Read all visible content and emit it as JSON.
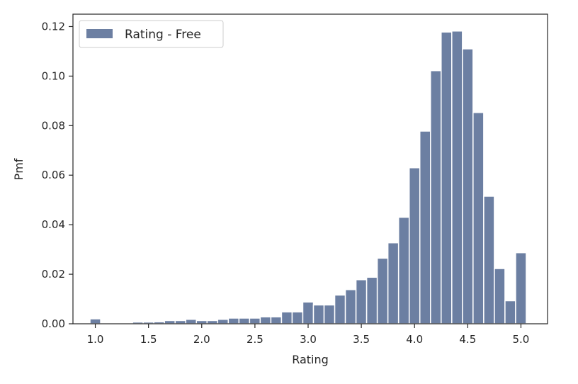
{
  "chart_data": {
    "type": "bar",
    "title": "",
    "xlabel": "Rating",
    "ylabel": "Pmf",
    "xlim": [
      0.79,
      5.25
    ],
    "ylim": [
      0,
      0.125
    ],
    "bar_width": 0.1,
    "xticks": [
      1.0,
      1.5,
      2.0,
      2.5,
      3.0,
      3.5,
      4.0,
      4.5,
      5.0
    ],
    "xtick_labels": [
      "1.0",
      "1.5",
      "2.0",
      "2.5",
      "3.0",
      "3.5",
      "4.0",
      "4.5",
      "5.0"
    ],
    "yticks": [
      0.0,
      0.02,
      0.04,
      0.06,
      0.08,
      0.1,
      0.12
    ],
    "ytick_labels": [
      "0.00",
      "0.02",
      "0.04",
      "0.06",
      "0.08",
      "0.10",
      "0.12"
    ],
    "grid": false,
    "legend_position": "top-left",
    "colors": {
      "bar": "#6c7fa2",
      "bar_edge": "#ffffff",
      "axis": "#262626"
    },
    "series": [
      {
        "name": "Rating - Free",
        "x": [
          1.0,
          1.4,
          1.5,
          1.6,
          1.7,
          1.8,
          1.9,
          2.0,
          2.1,
          2.2,
          2.3,
          2.4,
          2.5,
          2.6,
          2.7,
          2.8,
          2.9,
          3.0,
          3.1,
          3.2,
          3.3,
          3.4,
          3.5,
          3.6,
          3.7,
          3.8,
          3.9,
          4.0,
          4.1,
          4.2,
          4.3,
          4.4,
          4.5,
          4.6,
          4.7,
          4.8,
          4.9,
          5.0
        ],
        "values": [
          0.002,
          0.0007,
          0.0007,
          0.0008,
          0.0013,
          0.0013,
          0.0018,
          0.0013,
          0.0013,
          0.0018,
          0.0023,
          0.0023,
          0.0023,
          0.0028,
          0.0028,
          0.0048,
          0.0048,
          0.0088,
          0.0076,
          0.0076,
          0.0116,
          0.0138,
          0.0178,
          0.0188,
          0.0265,
          0.0327,
          0.043,
          0.063,
          0.0778,
          0.1022,
          0.1178,
          0.1182,
          0.111,
          0.0853,
          0.0515,
          0.0223,
          0.0093,
          0.0287
        ]
      }
    ]
  }
}
